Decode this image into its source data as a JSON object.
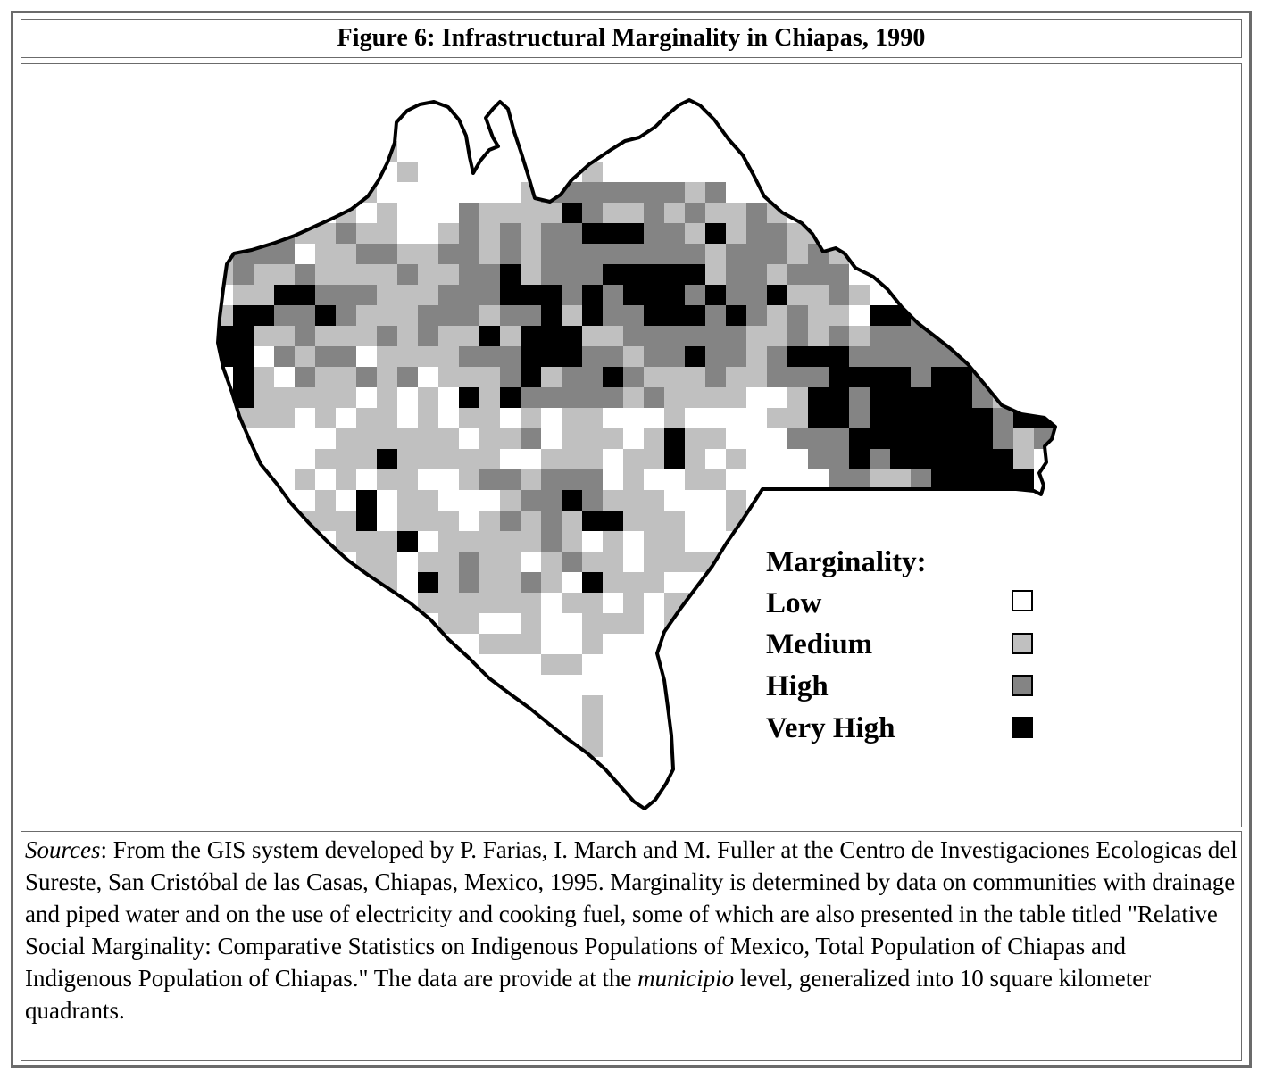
{
  "figure": {
    "title": "Figure 6: Infrastructural Marginality in Chiapas, 1990"
  },
  "legend": {
    "title": "Marginality:",
    "items": [
      {
        "label": "Low",
        "color": "#ffffff"
      },
      {
        "label": "Medium",
        "color": "#c0c0c0"
      },
      {
        "label": "High",
        "color": "#848484"
      },
      {
        "label": "Very High",
        "color": "#000000"
      }
    ]
  },
  "sources": {
    "label": "Sources",
    "text_before_italic": ": From the GIS system developed by P. Farias, I. March and M. Fuller at the Centro de Investigaciones Ecologicas del Sureste, San Cristóbal de las Casas, Chiapas, Mexico, 1995. Marginality is determined by data on communities with drainage and piped water and on the use of electricity and cooking fuel, some of which are also presented in the table titled \"Relative Social Marginality: Comparative Statistics on Indigenous Populations of Mexico, Total Population of Chiapas and Indigenous Population of Chiapas.\" The data are provide at the ",
    "italic_word": "municipio",
    "text_after_italic": " level, generalized into 10 square kilometer quadrants."
  }
}
